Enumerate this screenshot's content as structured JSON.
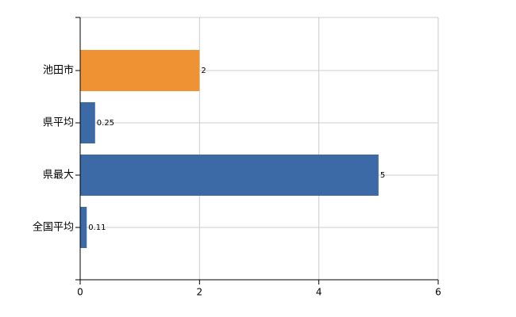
{
  "chart_data": {
    "type": "bar",
    "orientation": "horizontal",
    "categories": [
      "池田市",
      "県平均",
      "県最大",
      "全国平均"
    ],
    "values": [
      2,
      0.25,
      5,
      0.11
    ],
    "colors": [
      "#ef9233",
      "#3b6aa7",
      "#3b6aa7",
      "#3b6aa7"
    ],
    "xlim": [
      0,
      6
    ],
    "xticks": [
      0,
      2,
      4,
      6
    ],
    "grid": true
  }
}
